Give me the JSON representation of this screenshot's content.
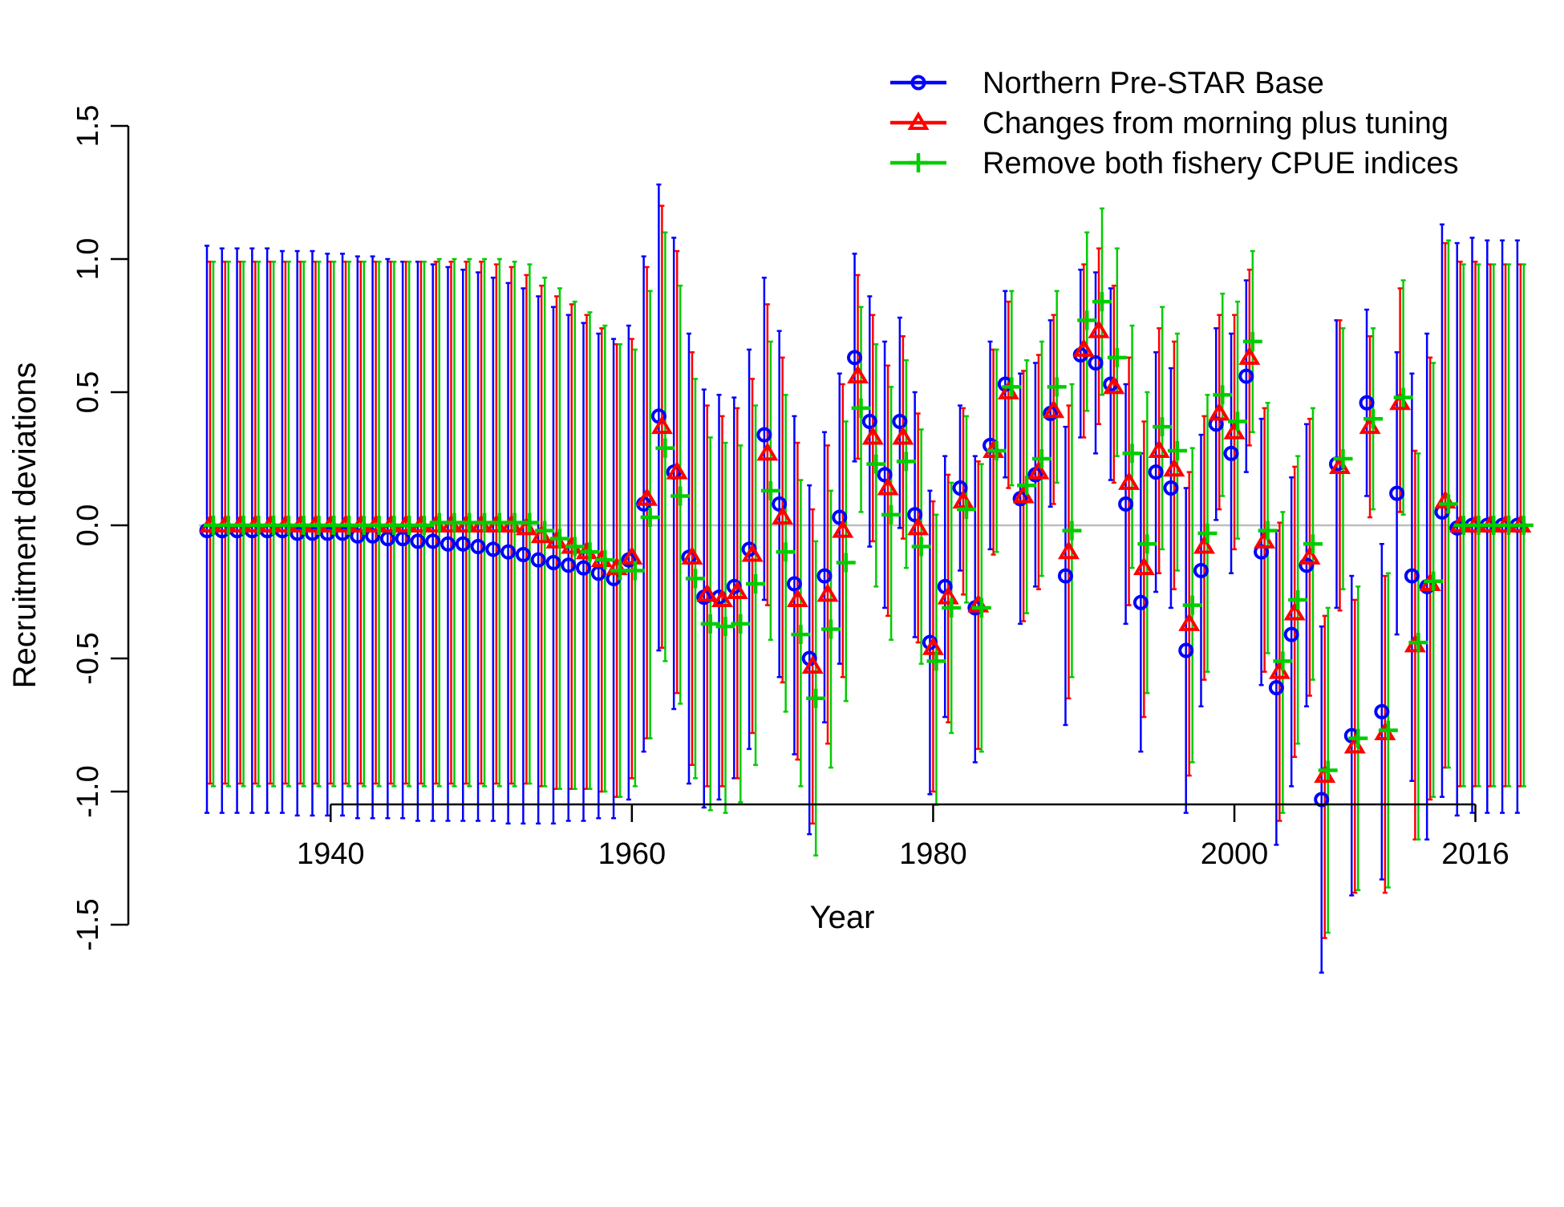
{
  "chart_data": {
    "type": "line",
    "title": "",
    "xlabel": "Year",
    "ylabel": "Recruitment deviations",
    "xlim": [
      1931,
      2019
    ],
    "ylim": [
      -1.5,
      1.5
    ],
    "x_ticks": [
      1940,
      1960,
      1980,
      2000,
      2016
    ],
    "y_ticks": [
      -1.5,
      -1.0,
      -0.5,
      0.0,
      0.5,
      1.0,
      1.5
    ],
    "x_tick_labels": [
      "1940",
      "1960",
      "1980",
      "2000",
      "2016"
    ],
    "y_tick_labels": [
      "-1.5",
      "-1.0",
      "-0.5",
      "0.0",
      "0.5",
      "1.0",
      "1.5"
    ],
    "reference_line": 0.0,
    "grid": false,
    "legend_position": "top-right",
    "series": [
      {
        "name": "Northern Pre-STAR Base",
        "color": "#0000ff",
        "marker": "circle",
        "x_start": 1932,
        "values": [
          -0.02,
          -0.02,
          -0.02,
          -0.02,
          -0.02,
          -0.02,
          -0.03,
          -0.03,
          -0.03,
          -0.03,
          -0.04,
          -0.04,
          -0.05,
          -0.05,
          -0.06,
          -0.06,
          -0.07,
          -0.07,
          -0.08,
          -0.09,
          -0.1,
          -0.11,
          -0.13,
          -0.14,
          -0.15,
          -0.16,
          -0.18,
          -0.2,
          -0.13,
          0.08,
          0.41,
          0.2,
          -0.12,
          -0.27,
          -0.27,
          -0.23,
          -0.09,
          0.34,
          0.08,
          -0.22,
          -0.5,
          -0.19,
          0.03,
          0.63,
          0.39,
          0.19,
          0.39,
          0.04,
          -0.44,
          -0.23,
          0.14,
          -0.31,
          0.3,
          0.53,
          0.1,
          0.19,
          0.42,
          -0.19,
          0.64,
          0.61,
          0.53,
          0.08,
          -0.29,
          0.2,
          0.14,
          -0.47,
          -0.17,
          0.38,
          0.27,
          0.56,
          -0.1,
          -0.61,
          -0.41,
          -0.15,
          -1.03,
          0.23,
          -0.79,
          0.46,
          -0.7,
          0.12,
          -0.19,
          -0.23,
          0.05,
          -0.01,
          0.0,
          0.0,
          0.0,
          0.0
        ],
        "lower": [
          -1.08,
          -1.08,
          -1.08,
          -1.08,
          -1.08,
          -1.08,
          -1.09,
          -1.09,
          -1.09,
          -1.09,
          -1.1,
          -1.1,
          -1.1,
          -1.1,
          -1.11,
          -1.11,
          -1.11,
          -1.11,
          -1.11,
          -1.11,
          -1.12,
          -1.12,
          -1.12,
          -1.12,
          -1.11,
          -1.11,
          -1.1,
          -1.1,
          -1.03,
          -0.85,
          -0.47,
          -0.69,
          -0.97,
          -1.06,
          -1.03,
          -0.95,
          -0.84,
          -0.28,
          -0.57,
          -0.86,
          -1.16,
          -0.74,
          -0.52,
          0.24,
          -0.08,
          -0.31,
          -0.01,
          -0.42,
          -1.01,
          -0.72,
          -0.17,
          -0.89,
          -0.09,
          0.18,
          -0.37,
          -0.23,
          0.07,
          -0.75,
          0.33,
          0.27,
          0.17,
          -0.37,
          -0.85,
          -0.25,
          -0.31,
          -1.08,
          -0.68,
          0.02,
          -0.18,
          0.2,
          -0.6,
          -1.2,
          -0.98,
          -0.68,
          -1.68,
          -0.31,
          -1.39,
          0.11,
          -1.33,
          -0.41,
          -0.96,
          -1.18,
          -1.02,
          -1.09,
          -1.08,
          -1.08,
          -1.08,
          -1.08
        ],
        "upper": [
          1.05,
          1.04,
          1.04,
          1.04,
          1.04,
          1.03,
          1.03,
          1.03,
          1.02,
          1.02,
          1.01,
          1.01,
          1.0,
          0.99,
          0.99,
          0.98,
          0.97,
          0.96,
          0.95,
          0.93,
          0.91,
          0.89,
          0.86,
          0.82,
          0.79,
          0.76,
          0.72,
          0.7,
          0.75,
          1.01,
          1.28,
          1.08,
          0.72,
          0.51,
          0.49,
          0.48,
          0.66,
          0.93,
          0.73,
          0.41,
          0.15,
          0.35,
          0.57,
          1.02,
          0.86,
          0.69,
          0.78,
          0.5,
          0.13,
          0.26,
          0.45,
          0.26,
          0.69,
          0.88,
          0.57,
          0.61,
          0.77,
          0.37,
          0.96,
          0.95,
          0.89,
          0.53,
          0.27,
          0.65,
          0.59,
          0.14,
          0.34,
          0.74,
          0.72,
          0.92,
          0.4,
          -0.02,
          0.18,
          0.38,
          -0.38,
          0.77,
          -0.19,
          0.81,
          -0.07,
          0.65,
          0.57,
          0.72,
          1.13,
          1.06,
          1.08,
          1.07,
          1.07,
          1.07
        ]
      },
      {
        "name": "Changes from morning plus tuning",
        "color": "#ff0000",
        "marker": "triangle",
        "x_start": 1932,
        "values": [
          0.0,
          0.0,
          0.0,
          0.0,
          0.0,
          0.0,
          0.0,
          0.0,
          0.0,
          0.0,
          0.0,
          0.0,
          0.0,
          0.0,
          0.0,
          0.0,
          0.0,
          0.0,
          0.0,
          0.0,
          0.0,
          -0.01,
          -0.04,
          -0.06,
          -0.08,
          -0.1,
          -0.13,
          -0.16,
          -0.12,
          0.1,
          0.37,
          0.2,
          -0.12,
          -0.26,
          -0.28,
          -0.25,
          -0.11,
          0.27,
          0.03,
          -0.28,
          -0.53,
          -0.26,
          -0.02,
          0.56,
          0.33,
          0.14,
          0.33,
          -0.01,
          -0.46,
          -0.27,
          0.09,
          -0.3,
          0.28,
          0.5,
          0.11,
          0.2,
          0.43,
          -0.1,
          0.66,
          0.73,
          0.52,
          0.16,
          -0.16,
          0.28,
          0.21,
          -0.37,
          -0.08,
          0.42,
          0.35,
          0.63,
          -0.06,
          -0.55,
          -0.33,
          -0.12,
          -0.94,
          0.22,
          -0.83,
          0.37,
          -0.78,
          0.46,
          -0.45,
          -0.22,
          0.09,
          0.0,
          0.0,
          0.0,
          0.0,
          0.0
        ],
        "lower": [
          -0.97,
          -0.97,
          -0.97,
          -0.97,
          -0.97,
          -0.97,
          -0.97,
          -0.97,
          -0.97,
          -0.97,
          -0.97,
          -0.97,
          -0.97,
          -0.97,
          -0.97,
          -0.97,
          -0.97,
          -0.97,
          -0.97,
          -0.97,
          -0.97,
          -0.97,
          -0.98,
          -0.99,
          -0.99,
          -0.99,
          -1.0,
          -1.02,
          -0.95,
          -0.8,
          -0.46,
          -0.63,
          -0.9,
          -0.98,
          -0.98,
          -0.95,
          -0.78,
          -0.3,
          -0.59,
          -0.88,
          -1.12,
          -0.82,
          -0.57,
          0.25,
          -0.06,
          -0.34,
          -0.05,
          -0.44,
          -1.0,
          -0.74,
          -0.26,
          -0.84,
          -0.11,
          0.14,
          -0.36,
          -0.24,
          0.08,
          -0.65,
          0.33,
          0.38,
          0.16,
          -0.3,
          -0.72,
          -0.18,
          -0.24,
          -0.94,
          -0.58,
          0.06,
          -0.09,
          0.3,
          -0.55,
          -1.11,
          -0.87,
          -0.64,
          -1.55,
          -0.32,
          -1.38,
          0.03,
          -1.38,
          0.05,
          -1.18,
          -1.03,
          -0.91,
          -0.98,
          -0.98,
          -0.98,
          -0.98,
          -0.98
        ],
        "upper": [
          0.99,
          0.99,
          0.99,
          0.99,
          0.99,
          0.99,
          0.99,
          0.99,
          0.99,
          0.99,
          0.99,
          0.99,
          0.99,
          0.99,
          0.99,
          0.99,
          0.99,
          0.99,
          0.99,
          0.98,
          0.97,
          0.94,
          0.9,
          0.86,
          0.83,
          0.79,
          0.74,
          0.68,
          0.7,
          0.97,
          1.2,
          1.03,
          0.65,
          0.45,
          0.41,
          0.44,
          0.55,
          0.83,
          0.63,
          0.31,
          0.06,
          0.3,
          0.53,
          0.94,
          0.79,
          0.6,
          0.71,
          0.42,
          0.09,
          0.19,
          0.44,
          0.24,
          0.66,
          0.84,
          0.58,
          0.64,
          0.79,
          0.45,
          0.98,
          1.04,
          0.9,
          0.63,
          0.39,
          0.74,
          0.69,
          0.2,
          0.41,
          0.79,
          0.79,
          0.96,
          0.44,
          0.01,
          0.22,
          0.4,
          -0.34,
          0.77,
          -0.28,
          0.71,
          -0.19,
          0.89,
          0.28,
          0.63,
          1.06,
          0.99,
          0.99,
          0.98,
          0.98,
          0.98
        ]
      },
      {
        "name": "Remove both fishery CPUE indices",
        "color": "#00cd00",
        "marker": "plus",
        "x_start": 1932,
        "values": [
          0.0,
          0.0,
          0.0,
          0.0,
          0.0,
          0.0,
          0.0,
          0.0,
          0.0,
          0.0,
          0.0,
          0.0,
          0.0,
          0.0,
          0.0,
          0.01,
          0.01,
          0.01,
          0.01,
          0.01,
          0.01,
          0.01,
          -0.02,
          -0.05,
          -0.08,
          -0.1,
          -0.13,
          -0.17,
          -0.17,
          0.03,
          0.29,
          0.11,
          -0.2,
          -0.37,
          -0.38,
          -0.37,
          -0.22,
          0.13,
          -0.1,
          -0.41,
          -0.65,
          -0.39,
          -0.14,
          0.44,
          0.23,
          0.04,
          0.24,
          -0.08,
          -0.51,
          -0.31,
          0.06,
          -0.31,
          0.28,
          0.52,
          0.15,
          0.25,
          0.52,
          -0.02,
          0.77,
          0.84,
          0.63,
          0.27,
          -0.07,
          0.37,
          0.28,
          -0.3,
          -0.03,
          0.49,
          0.39,
          0.69,
          -0.02,
          -0.51,
          -0.28,
          -0.07,
          -0.92,
          0.25,
          -0.8,
          0.4,
          -0.77,
          0.48,
          -0.44,
          -0.21,
          0.08,
          0.0,
          0.0,
          0.0,
          0.0,
          0.0
        ],
        "lower": [
          -0.98,
          -0.98,
          -0.98,
          -0.98,
          -0.98,
          -0.98,
          -0.98,
          -0.98,
          -0.98,
          -0.98,
          -0.98,
          -0.98,
          -0.98,
          -0.98,
          -0.98,
          -0.98,
          -0.98,
          -0.98,
          -0.98,
          -0.98,
          -0.98,
          -0.97,
          -0.98,
          -0.99,
          -0.99,
          -0.99,
          -1.0,
          -1.02,
          -0.98,
          -0.8,
          -0.51,
          -0.67,
          -0.95,
          -1.07,
          -1.08,
          -1.04,
          -0.9,
          -0.43,
          -0.7,
          -0.98,
          -1.24,
          -0.91,
          -0.66,
          0.05,
          -0.23,
          -0.43,
          -0.16,
          -0.52,
          -1.05,
          -0.78,
          -0.29,
          -0.85,
          -0.1,
          0.15,
          -0.33,
          -0.19,
          0.16,
          -0.57,
          0.43,
          0.49,
          0.26,
          -0.16,
          -0.63,
          -0.09,
          -0.17,
          -0.89,
          -0.55,
          0.11,
          -0.05,
          0.35,
          -0.48,
          -1.08,
          -0.82,
          -0.58,
          -1.53,
          -0.24,
          -1.37,
          0.06,
          -1.36,
          0.04,
          -1.18,
          -1.02,
          -0.91,
          -0.98,
          -0.98,
          -0.98,
          -0.98,
          -0.98
        ],
        "upper": [
          0.99,
          0.99,
          0.99,
          0.99,
          0.99,
          0.99,
          0.99,
          0.99,
          0.99,
          0.99,
          0.99,
          0.99,
          0.99,
          0.99,
          0.99,
          1.0,
          1.0,
          1.0,
          1.0,
          1.0,
          0.99,
          0.98,
          0.93,
          0.89,
          0.84,
          0.8,
          0.75,
          0.68,
          0.66,
          0.88,
          1.1,
          0.9,
          0.55,
          0.33,
          0.31,
          0.3,
          0.45,
          0.69,
          0.49,
          0.17,
          -0.06,
          0.13,
          0.39,
          0.82,
          0.68,
          0.52,
          0.62,
          0.36,
          0.04,
          0.16,
          0.41,
          0.23,
          0.66,
          0.88,
          0.62,
          0.69,
          0.88,
          0.53,
          1.1,
          1.19,
          1.04,
          0.75,
          0.5,
          0.82,
          0.72,
          0.29,
          0.49,
          0.87,
          0.84,
          1.03,
          0.46,
          0.05,
          0.26,
          0.44,
          -0.31,
          0.74,
          -0.23,
          0.74,
          -0.18,
          0.92,
          0.27,
          0.61,
          1.07,
          0.98,
          0.98,
          0.98,
          0.98,
          0.98
        ]
      }
    ]
  }
}
